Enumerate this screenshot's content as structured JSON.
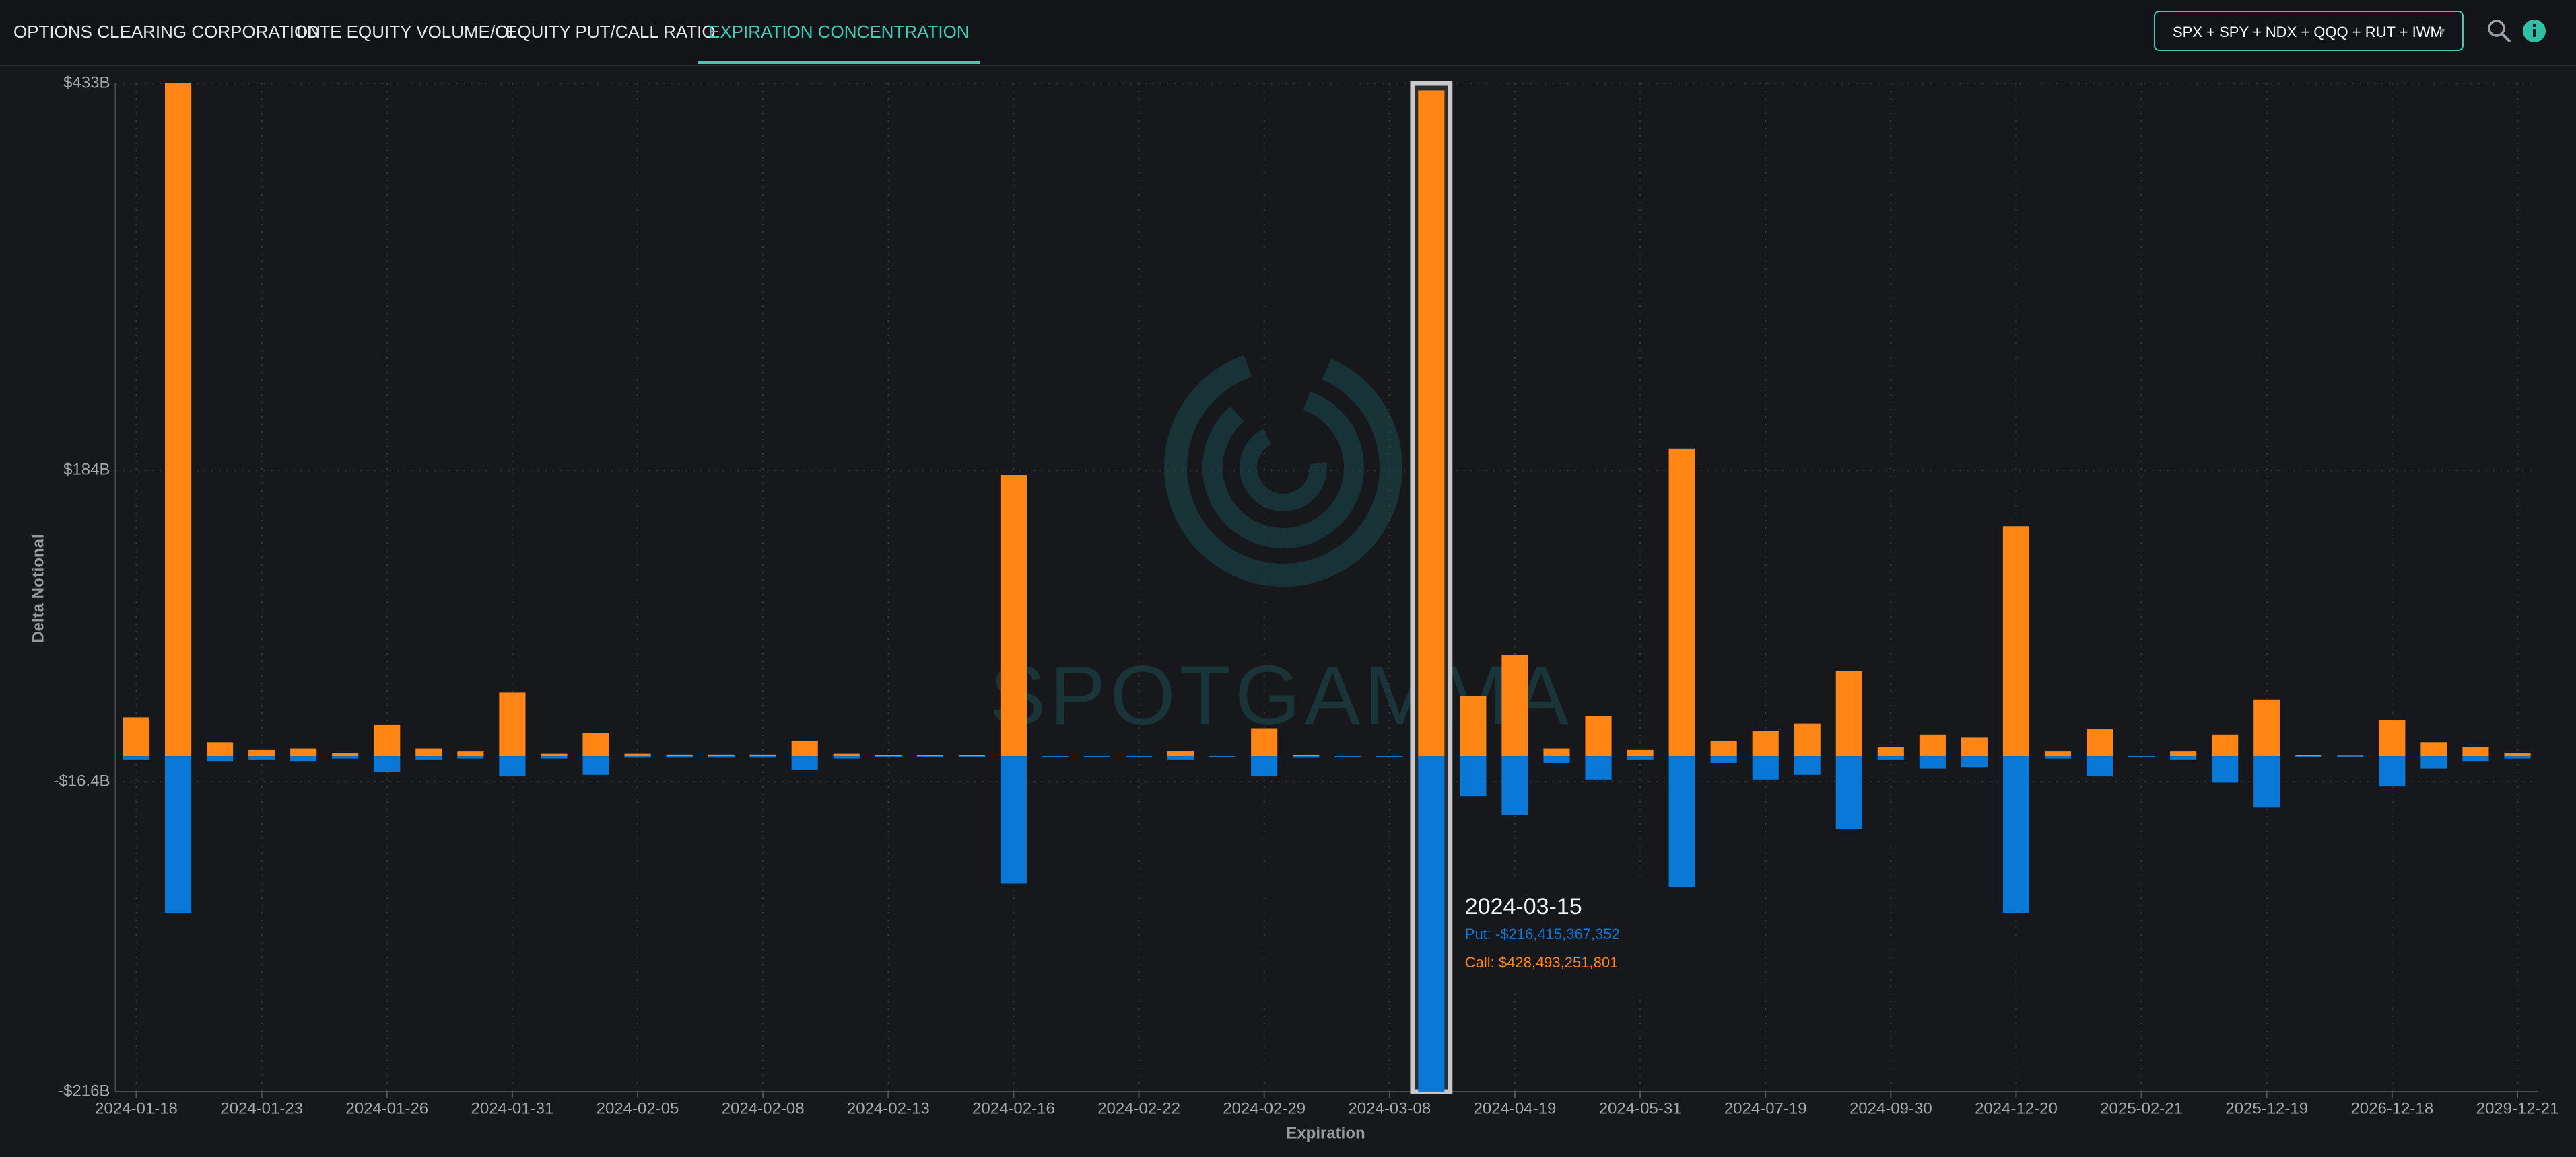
{
  "nav": {
    "tabs": [
      "OPTIONS CLEARING CORPORATION",
      "0DTE EQUITY VOLUME/OI",
      "EQUITY PUT/CALL RATIO",
      "EXPIRATION CONCENTRATION"
    ],
    "active": 3,
    "selector": "SPX + SPY + NDX + QQQ + RUT + IWM"
  },
  "chart_data": {
    "type": "bar",
    "stacked": true,
    "y_label": "Delta Notional",
    "x_label": "Expiration",
    "watermark": "SPOTGAMMA",
    "categories": [
      "2024-01-18",
      null,
      null,
      "2024-01-23",
      null,
      null,
      "2024-01-26",
      null,
      null,
      "2024-01-31",
      null,
      null,
      "2024-02-05",
      null,
      null,
      "2024-02-08",
      null,
      null,
      "2024-02-13",
      null,
      null,
      "2024-02-16",
      null,
      null,
      "2024-02-22",
      null,
      null,
      "2024-02-29",
      null,
      null,
      "2024-03-08",
      null,
      null,
      "2024-04-19",
      null,
      null,
      "2024-05-31",
      null,
      null,
      "2024-07-19",
      null,
      null,
      "2024-09-30",
      null,
      null,
      "2024-12-20",
      null,
      null,
      "2025-02-21",
      null,
      null,
      "2025-12-19",
      null,
      null,
      "2026-12-18",
      null,
      null,
      "2029-12-21"
    ],
    "series": [
      {
        "color": "#ff8614",
        "values": [
          25,
          433,
          9,
          4,
          5,
          2,
          20,
          5,
          3,
          41,
          1.5,
          15,
          1.5,
          1,
          1,
          1,
          10,
          1.5,
          0.5,
          0.5,
          0.5,
          181,
          0,
          0,
          0,
          3.5,
          0,
          18,
          0.5,
          0,
          0,
          428.49,
          39,
          65,
          5,
          26,
          4,
          198,
          10,
          16.5,
          21,
          55,
          6,
          14,
          12,
          148,
          3,
          17.5,
          0,
          3,
          14,
          36.5,
          0.5,
          0.3,
          23,
          9,
          6,
          2
        ]
      },
      {
        "color": "#0a78d6",
        "values": [
          -2.5,
          -101,
          -3.5,
          -2.5,
          -3.5,
          -1.5,
          -10,
          -2.5,
          -1.5,
          -13,
          -1.5,
          -12,
          -1,
          -1,
          -1,
          -1,
          -9,
          -1.5,
          -0.5,
          -0.5,
          -0.5,
          -82,
          -0.3,
          -0.3,
          0,
          -2.5,
          -0.2,
          -13,
          -1,
          0,
          0,
          -216.42,
          -26,
          -38,
          -4.5,
          -15,
          -2.5,
          -84,
          -4.5,
          -15,
          -12,
          -47,
          -2.5,
          -8,
          -7,
          -101,
          -1.5,
          -13,
          0,
          -2.5,
          -17,
          -33,
          -0.5,
          -0.3,
          -19.5,
          -8,
          -3.5,
          -1.5
        ]
      }
    ],
    "ylim": [
      -216,
      433
    ],
    "yticks": [
      {
        "value": -216,
        "label": "-$216B"
      },
      {
        "value": -16.4,
        "label": "-$16.4B"
      },
      {
        "value": 184,
        "label": "$184B"
      },
      {
        "value": 433,
        "label": "$433B"
      }
    ],
    "grid": true,
    "highlight": 31,
    "tooltip": {
      "title": "2024-03-15",
      "lines": [
        "Put: -$216,415,367,352",
        "Call: $428,493,251,801"
      ]
    }
  }
}
